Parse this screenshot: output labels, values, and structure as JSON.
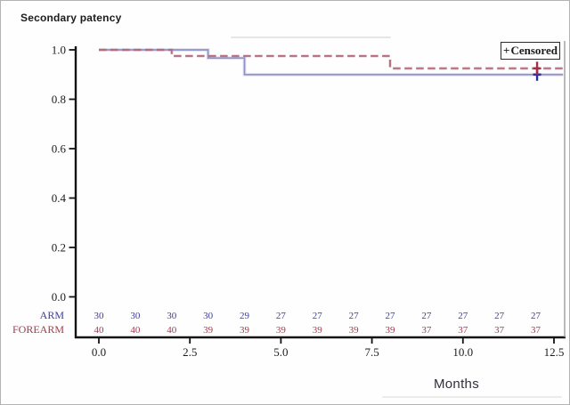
{
  "legend": {
    "marker": "+",
    "label": "Censored"
  },
  "chart_data": {
    "type": "line",
    "subtype": "kaplan-meier-step",
    "title": "Secondary patency",
    "xlabel": "Months",
    "ylabel": "",
    "xlim": [
      0,
      12.5
    ],
    "ylim": [
      0.0,
      1.0
    ],
    "grid": false,
    "legend_position": "top-right",
    "x_ticks": [
      {
        "value": 0,
        "label": "0.0"
      },
      {
        "value": 2.5,
        "label": "2.5"
      },
      {
        "value": 5,
        "label": "5.0"
      },
      {
        "value": 7.5,
        "label": "7.5"
      },
      {
        "value": 10,
        "label": "10.0"
      },
      {
        "value": 12.5,
        "label": "12.5"
      }
    ],
    "y_ticks": [
      {
        "value": 1.0,
        "label": "1.0"
      },
      {
        "value": 0.8,
        "label": "0.8"
      },
      {
        "value": 0.6,
        "label": "0.6"
      },
      {
        "value": 0.4,
        "label": "0.4"
      },
      {
        "value": 0.2,
        "label": "0.2"
      },
      {
        "value": 0.0,
        "label": "0.0"
      }
    ],
    "series": [
      {
        "name": "ARM",
        "style": "solid",
        "color": "#8f91c8",
        "censor_color": "#2e2e9a",
        "step_points": [
          [
            0,
            1.0
          ],
          [
            3,
            1.0
          ],
          [
            3,
            0.9667
          ],
          [
            4,
            0.9667
          ],
          [
            4,
            0.9
          ],
          [
            12.75,
            0.9
          ]
        ],
        "censored": [
          [
            12,
            0.9
          ]
        ]
      },
      {
        "name": "FOREARM",
        "style": "dashed",
        "color": "#b26e7e",
        "censor_color": "#a62e44",
        "step_points": [
          [
            0,
            1.0
          ],
          [
            2,
            1.0
          ],
          [
            2,
            0.975
          ],
          [
            8,
            0.975
          ],
          [
            8,
            0.925
          ],
          [
            12.75,
            0.925
          ]
        ],
        "censored": [
          [
            12,
            0.925
          ]
        ]
      }
    ],
    "at_risk_table": {
      "months": [
        0,
        1,
        2,
        3,
        4,
        5,
        6,
        7,
        8,
        9,
        10,
        11,
        12
      ],
      "rows": [
        {
          "label": "ARM",
          "color": "#3c3c9e",
          "values": [
            "30",
            "30",
            "30",
            "30",
            "29",
            "27",
            "27",
            "27",
            "27",
            "27",
            "27",
            "27",
            "27"
          ]
        },
        {
          "label": "FOREARM",
          "color": "#9e3c50",
          "values": [
            "40",
            "40",
            "40",
            "39",
            "39",
            "39",
            "39",
            "39",
            "39",
            "37",
            "37",
            "37",
            "37"
          ]
        }
      ]
    }
  }
}
